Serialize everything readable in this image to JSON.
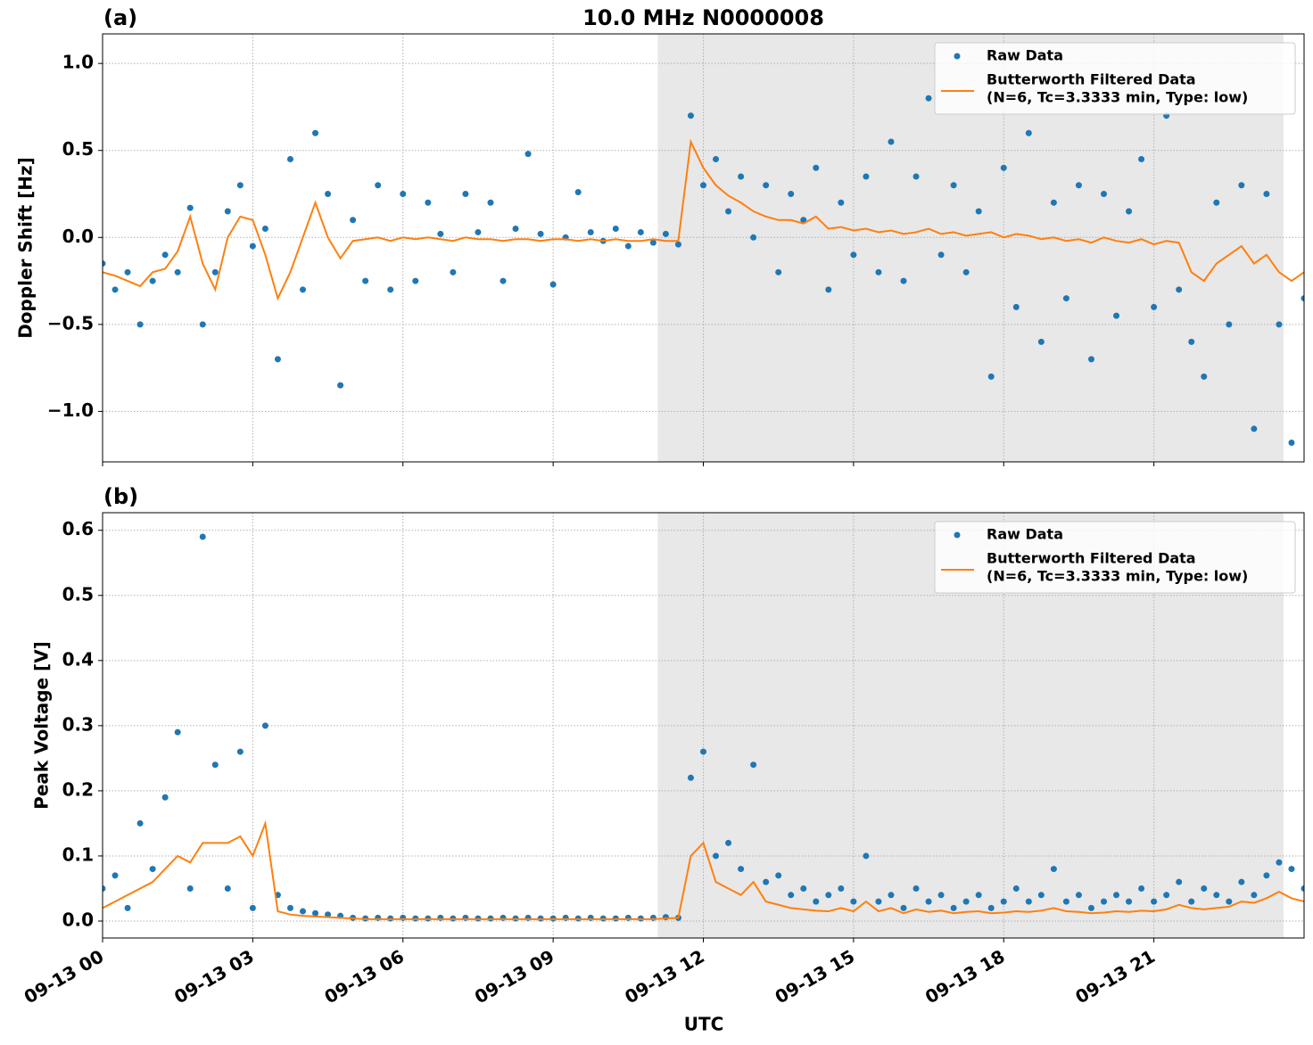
{
  "chart_data": [
    {
      "type": "scatter-line",
      "panel_label": "(a)",
      "title": "10.0 MHz N0000008",
      "ylabel": "Doppler Shift [Hz]",
      "x": [
        0,
        0.25,
        0.5,
        0.75,
        1,
        1.25,
        1.5,
        1.75,
        2,
        2.25,
        2.5,
        2.75,
        3,
        3.25,
        3.5,
        3.75,
        4,
        4.25,
        4.5,
        4.75,
        5,
        5.25,
        5.5,
        5.75,
        6,
        6.25,
        6.5,
        6.75,
        7,
        7.25,
        7.5,
        7.75,
        8,
        8.25,
        8.5,
        8.75,
        9,
        9.25,
        9.5,
        9.75,
        10,
        10.25,
        10.5,
        10.75,
        11,
        11.25,
        11.5,
        11.75,
        12,
        12.25,
        12.5,
        12.75,
        13,
        13.25,
        13.5,
        13.75,
        14,
        14.25,
        14.5,
        14.75,
        15,
        15.25,
        15.5,
        15.75,
        16,
        16.25,
        16.5,
        16.75,
        17,
        17.25,
        17.5,
        17.75,
        18,
        18.25,
        18.5,
        18.75,
        19,
        19.25,
        19.5,
        19.75,
        20,
        20.25,
        20.5,
        20.75,
        21,
        21.25,
        21.5,
        21.75,
        22,
        22.25,
        22.5,
        22.75,
        23,
        23.25,
        23.5,
        23.75,
        24
      ],
      "series": [
        {
          "name": [
            "Raw Data"
          ],
          "mode": "markers",
          "color": "#1f77b4",
          "values": [
            -0.15,
            -0.3,
            -0.2,
            -0.5,
            -0.25,
            -0.1,
            -0.2,
            0.17,
            -0.5,
            -0.2,
            0.15,
            0.3,
            -0.05,
            0.05,
            -0.7,
            0.45,
            -0.3,
            0.6,
            0.25,
            -0.85,
            0.1,
            -0.25,
            0.3,
            -0.3,
            0.25,
            -0.25,
            0.2,
            0.02,
            -0.2,
            0.25,
            0.03,
            0.2,
            -0.25,
            0.05,
            0.48,
            0.02,
            -0.27,
            0.0,
            0.26,
            0.03,
            -0.02,
            0.05,
            -0.05,
            0.03,
            -0.03,
            0.02,
            -0.04,
            0.7,
            0.3,
            0.45,
            0.15,
            0.35,
            0.0,
            0.3,
            -0.2,
            0.25,
            0.1,
            0.4,
            -0.3,
            0.2,
            -0.1,
            0.35,
            -0.2,
            0.55,
            -0.25,
            0.35,
            0.8,
            -0.1,
            0.3,
            -0.2,
            0.15,
            -0.8,
            0.4,
            -0.4,
            0.6,
            -0.6,
            0.2,
            -0.35,
            0.3,
            -0.7,
            0.25,
            -0.45,
            0.15,
            0.45,
            -0.4,
            0.7,
            -0.3,
            -0.6,
            -0.8,
            0.2,
            -0.5,
            0.3,
            -1.1,
            0.25,
            -0.5,
            -1.18,
            -0.35
          ]
        },
        {
          "name": [
            "Butterworth Filtered Data",
            "(N=6, Tc=3.3333 min, Type: low)"
          ],
          "mode": "line",
          "color": "#ff7f0e",
          "values": [
            -0.2,
            -0.22,
            -0.25,
            -0.28,
            -0.2,
            -0.18,
            -0.08,
            0.12,
            -0.15,
            -0.3,
            0.0,
            0.12,
            0.1,
            -0.1,
            -0.35,
            -0.2,
            0.0,
            0.2,
            0.0,
            -0.12,
            -0.02,
            -0.01,
            0,
            -0.02,
            0,
            -0.01,
            0,
            -0.01,
            -0.02,
            0,
            -0.01,
            -0.01,
            -0.02,
            -0.01,
            -0.01,
            -0.02,
            -0.01,
            -0.01,
            -0.02,
            -0.01,
            -0.02,
            -0.01,
            -0.02,
            -0.02,
            -0.01,
            -0.02,
            -0.02,
            0.55,
            0.4,
            0.3,
            0.24,
            0.2,
            0.15,
            0.12,
            0.1,
            0.1,
            0.08,
            0.12,
            0.05,
            0.06,
            0.04,
            0.05,
            0.03,
            0.04,
            0.02,
            0.03,
            0.05,
            0.02,
            0.03,
            0.01,
            0.02,
            0.03,
            0.0,
            0.02,
            0.01,
            -0.01,
            0.0,
            -0.02,
            -0.01,
            -0.03,
            0.0,
            -0.02,
            -0.03,
            -0.01,
            -0.04,
            -0.02,
            -0.03,
            -0.2,
            -0.25,
            -0.15,
            -0.1,
            -0.05,
            -0.15,
            -0.1,
            -0.2,
            -0.25,
            -0.2
          ]
        }
      ],
      "xlim": [
        0,
        24
      ],
      "xticks": [
        0,
        3,
        6,
        9,
        12,
        15,
        18,
        21
      ],
      "ylim": [
        -1.29,
        1.17
      ],
      "yticks": [
        {
          "value": -1.0,
          "label": "−1.0"
        },
        {
          "value": -0.5,
          "label": "−0.5"
        },
        {
          "value": 0.0,
          "label": "0.0"
        },
        0.5,
        {
          "value": 1.0,
          "label": "1.0"
        }
      ],
      "shade": [
        11.09,
        23.59
      ],
      "shade_color": "#e8e8e8",
      "grid": true,
      "legend": "upper-right"
    },
    {
      "type": "scatter-line",
      "panel_label": "(b)",
      "ylabel": "Peak Voltage [V]",
      "xlabel": "UTC",
      "x": [
        0,
        0.25,
        0.5,
        0.75,
        1,
        1.25,
        1.5,
        1.75,
        2,
        2.25,
        2.5,
        2.75,
        3,
        3.25,
        3.5,
        3.75,
        4,
        4.25,
        4.5,
        4.75,
        5,
        5.25,
        5.5,
        5.75,
        6,
        6.25,
        6.5,
        6.75,
        7,
        7.25,
        7.5,
        7.75,
        8,
        8.25,
        8.5,
        8.75,
        9,
        9.25,
        9.5,
        9.75,
        10,
        10.25,
        10.5,
        10.75,
        11,
        11.25,
        11.5,
        11.75,
        12,
        12.25,
        12.5,
        12.75,
        13,
        13.25,
        13.5,
        13.75,
        14,
        14.25,
        14.5,
        14.75,
        15,
        15.25,
        15.5,
        15.75,
        16,
        16.25,
        16.5,
        16.75,
        17,
        17.25,
        17.5,
        17.75,
        18,
        18.25,
        18.5,
        18.75,
        19,
        19.25,
        19.5,
        19.75,
        20,
        20.25,
        20.5,
        20.75,
        21,
        21.25,
        21.5,
        21.75,
        22,
        22.25,
        22.5,
        22.75,
        23,
        23.25,
        23.5,
        23.75,
        24
      ],
      "series": [
        {
          "name": [
            "Raw Data"
          ],
          "mode": "markers",
          "color": "#1f77b4",
          "values": [
            0.05,
            0.07,
            0.02,
            0.15,
            0.08,
            0.19,
            0.29,
            0.05,
            0.59,
            0.24,
            0.05,
            0.26,
            0.02,
            0.3,
            0.04,
            0.02,
            0.015,
            0.012,
            0.01,
            0.008,
            0.005,
            0.004,
            0.005,
            0.004,
            0.005,
            0.004,
            0.004,
            0.005,
            0.004,
            0.005,
            0.004,
            0.004,
            0.005,
            0.004,
            0.005,
            0.004,
            0.004,
            0.005,
            0.004,
            0.005,
            0.004,
            0.004,
            0.005,
            0.004,
            0.005,
            0.006,
            0.005,
            0.22,
            0.26,
            0.1,
            0.12,
            0.08,
            0.24,
            0.06,
            0.07,
            0.04,
            0.05,
            0.03,
            0.04,
            0.05,
            0.03,
            0.1,
            0.03,
            0.04,
            0.02,
            0.05,
            0.03,
            0.04,
            0.02,
            0.03,
            0.04,
            0.02,
            0.03,
            0.05,
            0.03,
            0.04,
            0.08,
            0.03,
            0.04,
            0.02,
            0.03,
            0.04,
            0.03,
            0.05,
            0.03,
            0.04,
            0.06,
            0.03,
            0.05,
            0.04,
            0.03,
            0.06,
            0.04,
            0.07,
            0.09,
            0.08,
            0.05
          ]
        },
        {
          "name": [
            "Butterworth Filtered Data",
            "(N=6, Tc=3.3333 min, Type: low)"
          ],
          "mode": "line",
          "color": "#ff7f0e",
          "values": [
            0.02,
            0.03,
            0.04,
            0.05,
            0.06,
            0.08,
            0.1,
            0.09,
            0.12,
            0.12,
            0.12,
            0.13,
            0.1,
            0.15,
            0.015,
            0.01,
            0.008,
            0.007,
            0.006,
            0.005,
            0.004,
            0.003,
            0.003,
            0.003,
            0.003,
            0.003,
            0.003,
            0.003,
            0.003,
            0.003,
            0.003,
            0.003,
            0.003,
            0.003,
            0.003,
            0.003,
            0.003,
            0.003,
            0.003,
            0.003,
            0.003,
            0.003,
            0.003,
            0.003,
            0.003,
            0.004,
            0.005,
            0.1,
            0.12,
            0.06,
            0.05,
            0.04,
            0.06,
            0.03,
            0.025,
            0.02,
            0.018,
            0.016,
            0.015,
            0.02,
            0.015,
            0.03,
            0.015,
            0.02,
            0.012,
            0.018,
            0.014,
            0.016,
            0.012,
            0.014,
            0.015,
            0.012,
            0.013,
            0.015,
            0.014,
            0.016,
            0.02,
            0.015,
            0.014,
            0.012,
            0.013,
            0.015,
            0.014,
            0.016,
            0.015,
            0.018,
            0.025,
            0.02,
            0.018,
            0.02,
            0.022,
            0.03,
            0.028,
            0.035,
            0.045,
            0.035,
            0.03
          ]
        }
      ],
      "xlim": [
        0,
        24
      ],
      "xticks": [
        {
          "value": 0,
          "label": "09-13 00"
        },
        {
          "value": 3,
          "label": "09-13 03"
        },
        {
          "value": 6,
          "label": "09-13 06"
        },
        {
          "value": 9,
          "label": "09-13 09"
        },
        {
          "value": 12,
          "label": "09-13 12"
        },
        {
          "value": 15,
          "label": "09-13 15"
        },
        {
          "value": 18,
          "label": "09-13 18"
        },
        {
          "value": 21,
          "label": "09-13 21"
        }
      ],
      "ylim": [
        -0.026,
        0.627
      ],
      "yticks": [
        {
          "value": 0.0,
          "label": "0.0"
        },
        0.1,
        0.2,
        0.3,
        0.4,
        0.5,
        0.6
      ],
      "shade": [
        11.09,
        23.59
      ],
      "shade_color": "#e8e8e8",
      "grid": true,
      "legend": "upper-right"
    }
  ]
}
